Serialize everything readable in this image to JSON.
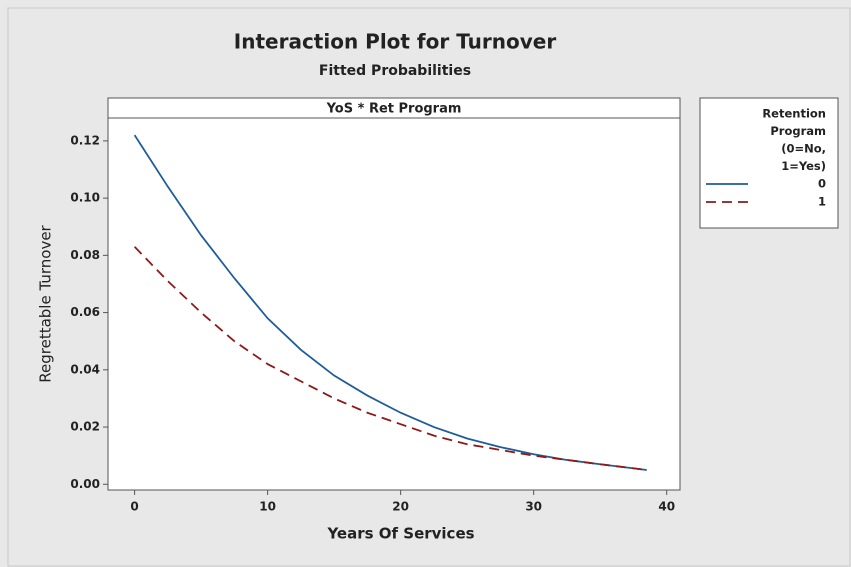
{
  "chart_data": {
    "type": "line",
    "title": "Interaction Plot for Turnover",
    "subtitle": "Fitted Probabilities",
    "panel_label": "YoS * Ret Program",
    "xlabel": "Years Of Services",
    "ylabel": "Regrettable Turnover",
    "legend_title": [
      "Retention",
      "Program",
      "(0=No,",
      "1=Yes)"
    ],
    "legend_position": "right",
    "x": [
      0,
      2.5,
      5,
      7.5,
      10,
      12.5,
      15,
      17.5,
      20,
      22.5,
      25,
      27.5,
      30,
      32.5,
      35,
      38.5
    ],
    "series": [
      {
        "name": "0",
        "color": "#1f5c99",
        "dash": "solid",
        "values": [
          0.122,
          0.104,
          0.087,
          0.072,
          0.058,
          0.047,
          0.038,
          0.031,
          0.025,
          0.02,
          0.016,
          0.013,
          0.0105,
          0.0085,
          0.007,
          0.005
        ]
      },
      {
        "name": "1",
        "color": "#8b1a1a",
        "dash": "dashed",
        "values": [
          0.083,
          0.071,
          0.06,
          0.05,
          0.042,
          0.036,
          0.03,
          0.025,
          0.021,
          0.017,
          0.014,
          0.012,
          0.01,
          0.0085,
          0.007,
          0.005
        ]
      }
    ],
    "xlim": [
      -2,
      41
    ],
    "xticks": [
      0,
      10,
      20,
      30,
      40
    ],
    "ylim": [
      -0.002,
      0.128
    ],
    "yticks": [
      {
        "value": 0,
        "label": "0.00"
      },
      {
        "value": 0.02,
        "label": "0.02"
      },
      {
        "value": 0.04,
        "label": "0.04"
      },
      {
        "value": 0.06,
        "label": "0.06"
      },
      {
        "value": 0.08,
        "label": "0.08"
      },
      {
        "value": 0.1,
        "label": "0.10"
      },
      {
        "value": 0.12,
        "label": "0.12"
      }
    ]
  }
}
